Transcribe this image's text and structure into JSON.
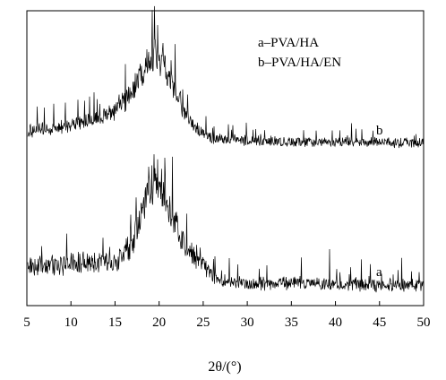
{
  "chart_data": {
    "type": "line",
    "title": "",
    "xlabel": "2θ/(°)",
    "ylabel": "",
    "xlim": [
      5,
      50
    ],
    "xticks": [
      5,
      10,
      15,
      20,
      25,
      30,
      35,
      40,
      45,
      50
    ],
    "x_tick_labels": [
      "5",
      "10",
      "15",
      "20",
      "25",
      "30",
      "35",
      "40",
      "45",
      "50"
    ],
    "y_ticks_shown": false,
    "grid": false,
    "legend": {
      "placement": "top-right",
      "entries": [
        "a–PVA/HA",
        "b–PVA/HA/EN"
      ]
    },
    "series": [
      {
        "name": "a",
        "label": "a",
        "color": "#000000",
        "noise_amplitude": 12,
        "x": [
          5,
          8,
          10,
          12,
          14,
          15,
          16,
          17,
          18,
          19,
          19.5,
          20,
          20.5,
          21,
          22,
          23,
          24,
          25,
          26,
          27,
          30,
          35,
          40,
          45,
          50
        ],
        "y": [
          30,
          30,
          32,
          34,
          33,
          35,
          42,
          55,
          85,
          118,
          128,
          125,
          112,
          95,
          70,
          50,
          40,
          32,
          20,
          12,
          10,
          10,
          9,
          8,
          8
        ],
        "spikes": [
          {
            "x": 20.6,
            "y": 150
          },
          {
            "x": 18.8,
            "y": 140
          },
          {
            "x": 16.3,
            "y": 60
          },
          {
            "x": 26.3,
            "y": 40
          },
          {
            "x": 32.2,
            "y": 30
          },
          {
            "x": 36.0,
            "y": 18
          },
          {
            "x": 39.3,
            "y": 48
          },
          {
            "x": 41.6,
            "y": 20
          },
          {
            "x": 43.8,
            "y": 18
          }
        ]
      },
      {
        "name": "b",
        "label": "b",
        "color": "#000000",
        "noise_amplitude": 10,
        "x": [
          5,
          8,
          10,
          12,
          14,
          15,
          16,
          17,
          18,
          19,
          19.5,
          20,
          20.5,
          21,
          22,
          23,
          24,
          25,
          26,
          30,
          35,
          40,
          45,
          50
        ],
        "y": [
          18,
          20,
          24,
          28,
          34,
          40,
          50,
          62,
          80,
          96,
          102,
          100,
          92,
          78,
          58,
          36,
          22,
          14,
          9,
          6,
          5,
          4,
          4,
          3
        ],
        "spikes": [
          {
            "x": 19.8,
            "y": 135
          },
          {
            "x": 20.4,
            "y": 115
          },
          {
            "x": 18.6,
            "y": 108
          },
          {
            "x": 12.6,
            "y": 60
          },
          {
            "x": 26.2,
            "y": 22
          },
          {
            "x": 41.4,
            "y": 12
          }
        ]
      }
    ]
  }
}
